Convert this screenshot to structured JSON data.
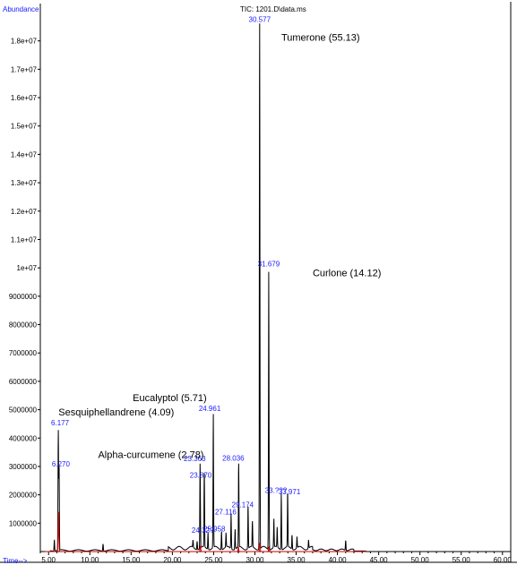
{
  "chart_data": {
    "type": "line",
    "title": "TIC: 1201.D\\data.ms",
    "ylabel": "Abundance",
    "xlabel": "Time-->",
    "xlim": [
      4.0,
      61.0
    ],
    "ylim": [
      0,
      19000000
    ],
    "x_ticks": [
      {
        "value": 5,
        "label": "5.00"
      },
      {
        "value": 10,
        "label": "10.00"
      },
      {
        "value": 15,
        "label": "15.00"
      },
      {
        "value": 20,
        "label": "20.00"
      },
      {
        "value": 25,
        "label": "25.00"
      },
      {
        "value": 30,
        "label": "30.00"
      },
      {
        "value": 35,
        "label": "35.00"
      },
      {
        "value": 40,
        "label": "40.00"
      },
      {
        "value": 45,
        "label": "45.00"
      },
      {
        "value": 50,
        "label": "50.00"
      },
      {
        "value": 55,
        "label": "55.00"
      },
      {
        "value": 60,
        "label": "60.00"
      }
    ],
    "y_ticks": [
      {
        "value": 1000000,
        "label": "1000000"
      },
      {
        "value": 2000000,
        "label": "2000000"
      },
      {
        "value": 3000000,
        "label": "3000000"
      },
      {
        "value": 4000000,
        "label": "4000000"
      },
      {
        "value": 5000000,
        "label": "5000000"
      },
      {
        "value": 6000000,
        "label": "6000000"
      },
      {
        "value": 7000000,
        "label": "7000000"
      },
      {
        "value": 8000000,
        "label": "8000000"
      },
      {
        "value": 9000000,
        "label": "9000000"
      },
      {
        "value": 10000000,
        "label": "1e+07"
      },
      {
        "value": 11000000,
        "label": "1.1e+07"
      },
      {
        "value": 12000000,
        "label": "1.2e+07"
      },
      {
        "value": 13000000,
        "label": "1.3e+07"
      },
      {
        "value": 14000000,
        "label": "1.4e+07"
      },
      {
        "value": 15000000,
        "label": "1.5e+07"
      },
      {
        "value": 16000000,
        "label": "1.6e+07"
      },
      {
        "value": 17000000,
        "label": "1.7e+07"
      },
      {
        "value": 18000000,
        "label": "1.8e+07"
      }
    ],
    "series": [
      {
        "color": "#000000",
        "peaks": [
          {
            "label": "6.177",
            "x": 6.177,
            "y": 4200000
          },
          {
            "label": "6.270",
            "x": 6.27,
            "y": 3000000
          },
          {
            "label": "23.363",
            "x": 23.363,
            "y": 3000000
          },
          {
            "label": "23.870",
            "x": 23.87,
            "y": 2700000
          },
          {
            "label": "24.961",
            "x": 24.961,
            "y": 4700000
          },
          {
            "label": "24.32?",
            "x": 24.32,
            "y": 600000
          },
          {
            "label": "25.958",
            "x": 25.958,
            "y": 650000
          },
          {
            "label": "27.116",
            "x": 27.116,
            "y": 1250000
          },
          {
            "label": "28.036",
            "x": 28.036,
            "y": 2950000
          },
          {
            "label": "29.174",
            "x": 29.174,
            "y": 1500000
          },
          {
            "label": "30.577",
            "x": 30.577,
            "y": 18600000
          },
          {
            "label": "31.679",
            "x": 31.679,
            "y": 9800000
          },
          {
            "label": "33.???",
            "x": 33.2,
            "y": 2000000
          },
          {
            "label": "33.971",
            "x": 33.971,
            "y": 1950000
          }
        ],
        "minor_peaks": [
          {
            "x": 5.7,
            "y": 400000
          },
          {
            "x": 11.6,
            "y": 250000
          },
          {
            "x": 22.5,
            "y": 250000
          },
          {
            "x": 23.0,
            "y": 300000
          },
          {
            "x": 26.5,
            "y": 500000
          },
          {
            "x": 27.6,
            "y": 700000
          },
          {
            "x": 29.7,
            "y": 900000
          },
          {
            "x": 32.3,
            "y": 1000000
          },
          {
            "x": 32.7,
            "y": 700000
          },
          {
            "x": 34.5,
            "y": 500000
          },
          {
            "x": 35.1,
            "y": 400000
          },
          {
            "x": 36.5,
            "y": 300000
          },
          {
            "x": 41.0,
            "y": 350000
          }
        ]
      },
      {
        "color": "#cc0000",
        "peaks": [
          {
            "x": 6.2,
            "y": 1400000
          },
          {
            "x": 23.4,
            "y": 200000
          },
          {
            "x": 28.0,
            "y": 150000
          },
          {
            "x": 30.6,
            "y": 300000
          },
          {
            "x": 31.7,
            "y": 150000
          }
        ]
      }
    ],
    "annotations": [
      {
        "text": "Tumerone (55.13)",
        "x": 33.2,
        "y": 18000000
      },
      {
        "text": "Curlone (14.12)",
        "x": 37.0,
        "y": 9700000
      },
      {
        "text": "Eucalyptol (5.71)",
        "x": 15.2,
        "y": 5300000
      },
      {
        "text": "Sesquiphellandrene (4.09)",
        "x": 6.2,
        "y": 4800000
      },
      {
        "text": "Alpha-curcumene (2.78)",
        "x": 11.0,
        "y": 3300000
      }
    ]
  }
}
